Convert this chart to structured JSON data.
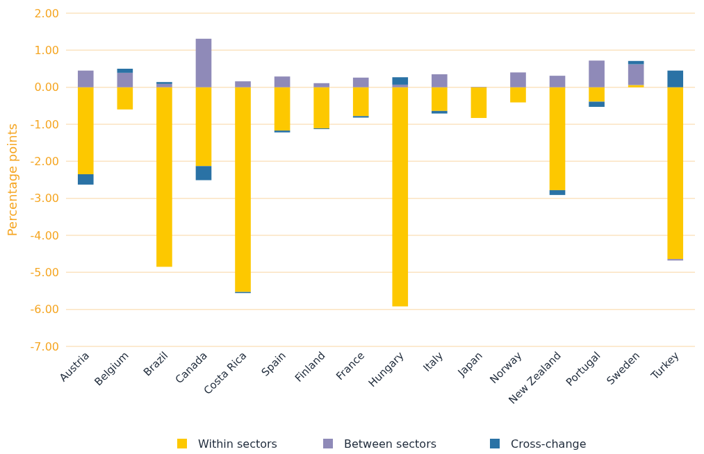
{
  "chart_data": {
    "type": "bar",
    "stacked": true,
    "ylabel": "Percentage points",
    "categories": [
      "Austria",
      "Belgium",
      "Brazil",
      "Canada",
      "Costa Rica",
      "Spain",
      "Finland",
      "France",
      "Hungary",
      "Italy",
      "Japan",
      "Norway",
      "New Zealand",
      "Portugal",
      "Sweden",
      "Turkey"
    ],
    "series": [
      {
        "name": "Within sectors",
        "color": "#fdc800",
        "values": [
          -2.35,
          -0.6,
          -4.85,
          -2.13,
          -5.53,
          -1.17,
          -1.11,
          -0.78,
          -5.92,
          -0.64,
          -0.83,
          -0.41,
          -2.78,
          -0.39,
          0.06,
          -4.64
        ]
      },
      {
        "name": "Between sectors",
        "color": "#8f8ab8",
        "values": [
          0.45,
          0.39,
          0.09,
          1.31,
          0.16,
          0.29,
          0.11,
          0.26,
          0.07,
          0.35,
          0.01,
          0.4,
          0.31,
          0.72,
          0.56,
          -0.04
        ]
      },
      {
        "name": "Cross-change",
        "color": "#2a72a5",
        "values": [
          -0.28,
          0.11,
          0.05,
          -0.38,
          -0.03,
          -0.05,
          -0.02,
          -0.04,
          0.2,
          -0.07,
          0,
          0,
          -0.13,
          -0.14,
          0.09,
          0.45
        ]
      }
    ],
    "ylim": [
      -7,
      2
    ],
    "yticks": [
      {
        "value": -7,
        "label": "-7.00"
      },
      {
        "value": -6,
        "label": "-6.00"
      },
      {
        "value": -5,
        "label": "-5.00"
      },
      {
        "value": -4,
        "label": "-4.00"
      },
      {
        "value": -3,
        "label": "-3.00"
      },
      {
        "value": -2,
        "label": "-2.00"
      },
      {
        "value": -1,
        "label": "-1.00"
      },
      {
        "value": 0,
        "label": "0.00"
      },
      {
        "value": 1,
        "label": "1.00"
      },
      {
        "value": 2,
        "label": "2.00"
      }
    ],
    "grid": "y",
    "legend": "bottom"
  }
}
